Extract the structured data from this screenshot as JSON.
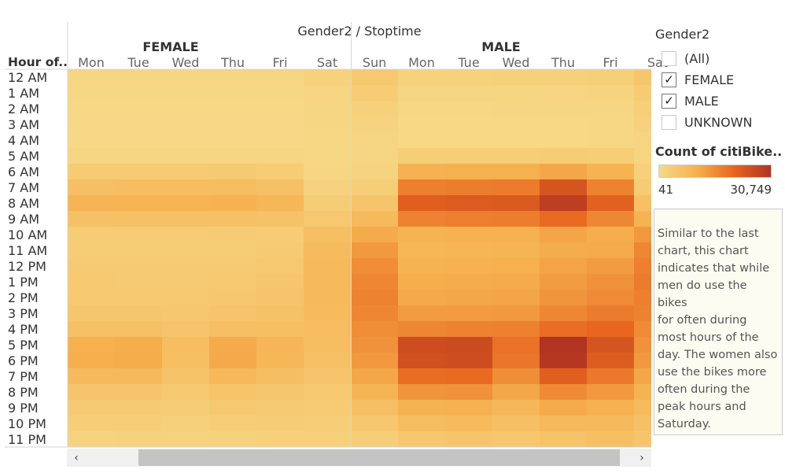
{
  "chart_data": {
    "type": "heatmap",
    "title": "Gender2 / Stoptime",
    "row_header": "Hour of..",
    "rows": [
      "12 AM",
      "1 AM",
      "2 AM",
      "3 AM",
      "4 AM",
      "5 AM",
      "6 AM",
      "7 AM",
      "8 AM",
      "9 AM",
      "10 AM",
      "11 AM",
      "12 PM",
      "1 PM",
      "2 PM",
      "3 PM",
      "4 PM",
      "5 PM",
      "6 PM",
      "7 PM",
      "8 PM",
      "9 PM",
      "10 PM",
      "11 PM"
    ],
    "groups": [
      {
        "name": "FEMALE",
        "days": [
          "Mon",
          "Tue",
          "Wed",
          "Thu",
          "Fri",
          "Sat"
        ],
        "values": [
          [
            700,
            700,
            700,
            700,
            800,
            1800
          ],
          [
            500,
            500,
            500,
            500,
            500,
            1200
          ],
          [
            400,
            400,
            400,
            400,
            400,
            1000
          ],
          [
            300,
            300,
            300,
            300,
            300,
            800
          ],
          [
            300,
            300,
            300,
            300,
            300,
            500
          ],
          [
            900,
            900,
            900,
            900,
            900,
            500
          ],
          [
            3500,
            3600,
            3600,
            3800,
            3300,
            900
          ],
          [
            6500,
            6800,
            6800,
            7000,
            6200,
            1700
          ],
          [
            9200,
            9400,
            9400,
            9800,
            8600,
            3000
          ],
          [
            6000,
            6200,
            6200,
            6400,
            5800,
            4400
          ],
          [
            3400,
            3400,
            3400,
            3500,
            3400,
            6500
          ],
          [
            3300,
            3300,
            3300,
            3400,
            3800,
            7500
          ],
          [
            3700,
            3700,
            3700,
            3800,
            4400,
            8000
          ],
          [
            4000,
            3900,
            3900,
            4100,
            4800,
            8000
          ],
          [
            4300,
            4300,
            4300,
            4500,
            5200,
            7800
          ],
          [
            4800,
            4900,
            4500,
            5000,
            5800,
            7600
          ],
          [
            6200,
            6100,
            5200,
            6500,
            6600,
            7200
          ],
          [
            10300,
            10500,
            6800,
            11000,
            8700,
            6800
          ],
          [
            10400,
            10700,
            6600,
            11200,
            8600,
            6300
          ],
          [
            7800,
            8000,
            5600,
            8400,
            6700,
            5300
          ],
          [
            5000,
            5200,
            4000,
            5400,
            4800,
            4200
          ],
          [
            3700,
            3800,
            3000,
            4000,
            3700,
            3600
          ],
          [
            2700,
            2800,
            2300,
            2900,
            3000,
            2900
          ],
          [
            1600,
            1700,
            1500,
            1800,
            2200,
            2200
          ]
        ]
      },
      {
        "name": "MALE",
        "days": [
          "Sun",
          "Mon",
          "Tue",
          "Wed",
          "Thu",
          "Fri",
          "Sat"
        ],
        "values": [
          [
            4400,
            1700,
            1800,
            2000,
            2200,
            2600,
            4800
          ],
          [
            3400,
            1000,
            1000,
            1100,
            1200,
            1400,
            3600
          ],
          [
            2400,
            600,
            600,
            700,
            700,
            900,
            2600
          ],
          [
            1600,
            400,
            400,
            400,
            400,
            500,
            1700
          ],
          [
            1100,
            400,
            400,
            400,
            400,
            500,
            1200
          ],
          [
            1000,
            2800,
            2900,
            2900,
            3000,
            2700,
            1100
          ],
          [
            1600,
            9800,
            10200,
            10200,
            11500,
            9600,
            2200
          ],
          [
            2800,
            17000,
            17400,
            17600,
            24000,
            16500,
            3600
          ],
          [
            5200,
            22000,
            22800,
            23000,
            28500,
            21500,
            6000
          ],
          [
            8000,
            16500,
            17200,
            17400,
            20000,
            16000,
            9500
          ],
          [
            11000,
            9600,
            9800,
            10000,
            11800,
            10500,
            13500
          ],
          [
            13500,
            8600,
            8800,
            9000,
            10800,
            11000,
            16000
          ],
          [
            15000,
            9600,
            9800,
            10200,
            12000,
            13000,
            17000
          ],
          [
            16000,
            10500,
            10800,
            11000,
            13000,
            14500,
            17500
          ],
          [
            16500,
            11200,
            11500,
            11800,
            14000,
            15500,
            17000
          ],
          [
            16000,
            13000,
            13200,
            13500,
            16000,
            17500,
            16500
          ],
          [
            15000,
            16000,
            16500,
            16800,
            19500,
            20500,
            15500
          ],
          [
            14500,
            25500,
            26000,
            19000,
            30749,
            24000,
            14500
          ],
          [
            13500,
            25000,
            25500,
            18500,
            30000,
            22500,
            13500
          ],
          [
            11500,
            19500,
            20000,
            15000,
            22000,
            18000,
            11500
          ],
          [
            9000,
            14000,
            14500,
            11500,
            15500,
            13500,
            9500
          ],
          [
            6500,
            9500,
            10000,
            8500,
            11000,
            10000,
            7500
          ],
          [
            4500,
            7000,
            7500,
            6500,
            8000,
            8000,
            6000
          ],
          [
            2800,
            4500,
            5000,
            4500,
            5500,
            6500,
            5000
          ]
        ]
      }
    ],
    "color_scale": {
      "min": 41,
      "max": 30749,
      "colors": [
        "#f6d987",
        "#f6b04e",
        "#e8661f",
        "#b13322"
      ]
    },
    "xlabel": "",
    "ylabel": ""
  },
  "filter": {
    "title": "Gender2",
    "items": [
      {
        "label": "(All)",
        "checked": false
      },
      {
        "label": "FEMALE",
        "checked": true
      },
      {
        "label": "MALE",
        "checked": true
      },
      {
        "label": "UNKNOWN",
        "checked": false
      }
    ]
  },
  "legend": {
    "title": "Count of citiBike..",
    "min_label": "41",
    "max_label": "30,749"
  },
  "annotation": {
    "lines": [
      "Similar to the last",
      "chart, this chart",
      "indicates that while",
      "men do use the bikes",
      "for often during",
      "most hours of the",
      "day. The women also",
      "use the bikes more",
      "often during the",
      "peak hours and",
      "Saturday."
    ]
  },
  "scrollbar": {
    "left_arrow": "‹",
    "right_arrow": "›",
    "left_icon": "chevron-left-icon",
    "right_icon": "chevron-right-icon"
  }
}
